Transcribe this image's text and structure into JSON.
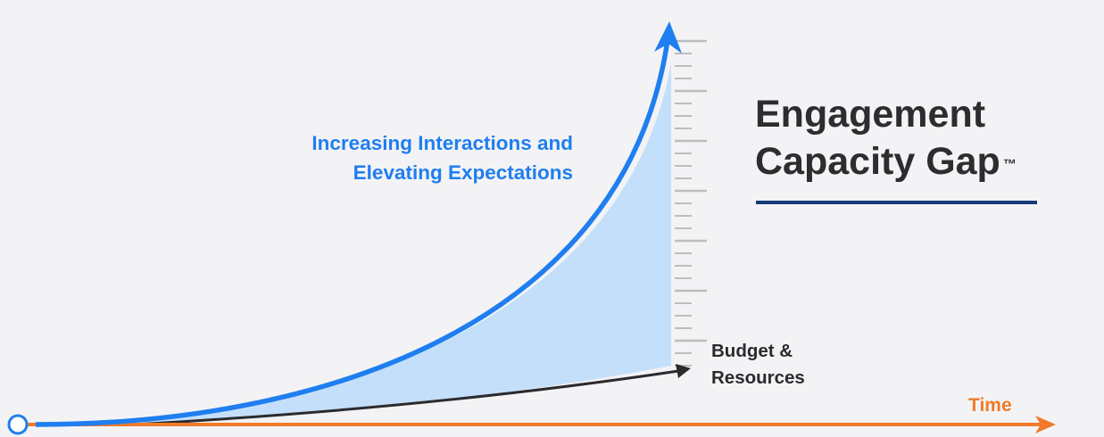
{
  "heading": {
    "line1": "Engagement",
    "line2": "Capacity Gap",
    "trademark": "™"
  },
  "curve_label": {
    "line1": "Increasing Interactions and",
    "line2": "Elevating Expectations"
  },
  "budget_label": {
    "line1": "Budget &",
    "line2": "Resources"
  },
  "time_label": "Time",
  "colors": {
    "expectations_curve": "#1f7ef0",
    "gap_fill": "#c4dffa",
    "budget_curve": "#2b2b2e",
    "time_axis": "#f07a2a",
    "scale_ticks": "#bdbdbd",
    "heading_rule": "#173a79",
    "heading_text": "#2d2d30"
  },
  "icons": {
    "origin": "origin-circle-icon",
    "expectations_arrow": "arrowhead-up-icon",
    "budget_arrow": "arrowhead-right-icon",
    "time_arrow": "arrowhead-right-icon"
  }
}
